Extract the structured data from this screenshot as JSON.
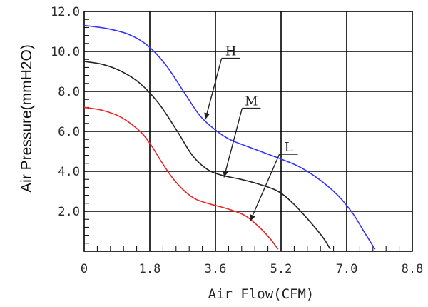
{
  "chart_data": {
    "type": "line",
    "xlabel": "Air Flow(CFM)",
    "ylabel": "Air Pressure(mmH2O)",
    "x_ticks": [
      "0",
      "1.8",
      "3.6",
      "5.2",
      "7.0",
      "8.8"
    ],
    "y_ticks": [
      "12.0",
      "10.0",
      "8.0",
      "6.0",
      "4.0",
      "2.0"
    ],
    "xlim": [
      0,
      8.8
    ],
    "ylim": [
      0,
      12
    ],
    "grid": true,
    "series": [
      {
        "name": "H",
        "color": "#3333ff",
        "x": [
          0,
          0.6,
          1.2,
          1.7,
          2.2,
          2.7,
          3.1,
          3.5,
          3.9,
          4.3,
          4.8,
          5.3,
          5.8,
          6.3,
          6.8,
          7.2,
          7.5,
          7.8
        ],
        "y": [
          11.3,
          11.15,
          10.85,
          10.3,
          9.3,
          7.9,
          6.8,
          6.1,
          5.6,
          5.3,
          4.95,
          4.6,
          4.2,
          3.6,
          2.8,
          1.9,
          1.0,
          0.1
        ]
      },
      {
        "name": "M",
        "color": "#222222",
        "x": [
          0,
          0.5,
          1.0,
          1.5,
          2.0,
          2.5,
          2.9,
          3.3,
          3.7,
          4.2,
          4.7,
          5.2,
          5.6,
          6.0,
          6.4,
          6.6
        ],
        "y": [
          9.5,
          9.35,
          9.0,
          8.4,
          7.4,
          6.0,
          4.8,
          4.1,
          3.8,
          3.6,
          3.35,
          3.0,
          2.4,
          1.6,
          0.7,
          0.1
        ]
      },
      {
        "name": "L",
        "color": "#ee2222",
        "x": [
          0,
          0.5,
          1.0,
          1.5,
          1.8,
          2.1,
          2.4,
          2.7,
          3.0,
          3.4,
          3.8,
          4.3,
          4.7,
          5.0,
          5.2
        ],
        "y": [
          7.2,
          7.05,
          6.7,
          6.0,
          5.3,
          4.4,
          3.6,
          3.0,
          2.6,
          2.35,
          2.15,
          1.8,
          1.2,
          0.6,
          0.1
        ]
      }
    ],
    "annotations": [
      {
        "text": "H",
        "series": "H",
        "target_x": 3.25,
        "target_y": 6.6,
        "label_x": 3.8,
        "label_y": 9.8
      },
      {
        "text": "M",
        "series": "M",
        "target_x": 3.75,
        "target_y": 3.7,
        "label_x": 4.35,
        "label_y": 7.3
      },
      {
        "text": "L",
        "series": "L",
        "target_x": 4.45,
        "target_y": 1.5,
        "label_x": 5.35,
        "label_y": 5.0
      }
    ]
  }
}
